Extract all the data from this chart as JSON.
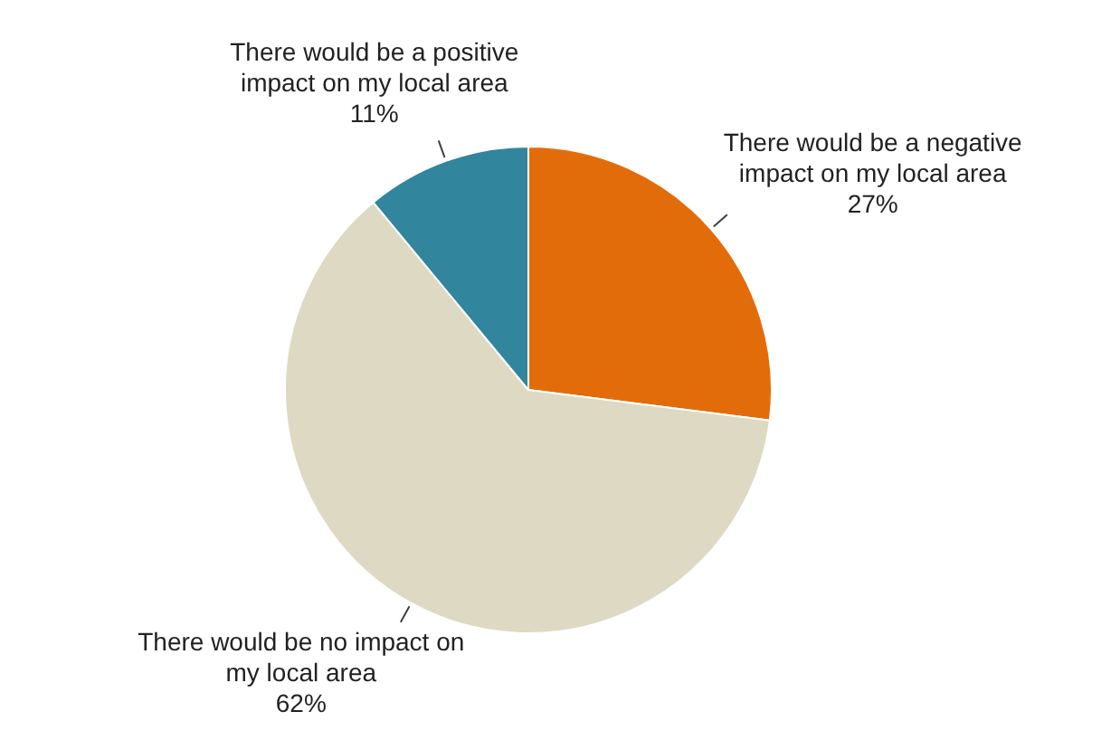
{
  "chart_data": {
    "type": "pie",
    "categories": [
      "There would be a negative impact on my local area",
      "There would be no impact on my local area",
      "There would be a positive impact on my local area"
    ],
    "values": [
      27,
      62,
      11
    ],
    "colors": [
      "#e36c0a",
      "#ddd9c3",
      "#31859c"
    ],
    "value_labels": [
      "27%",
      "62%",
      "11%"
    ],
    "legend": false
  }
}
